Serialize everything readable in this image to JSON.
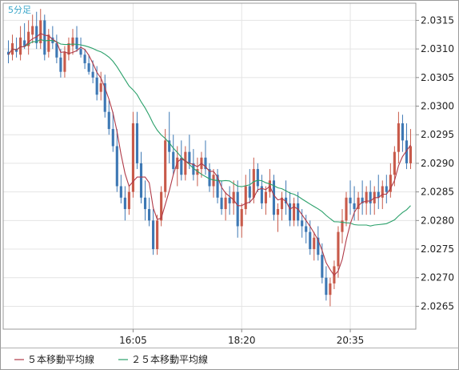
{
  "timeframe_label": "5分足",
  "chart_data": {
    "type": "candlestick",
    "ylim": [
      2.0261,
      2.0318
    ],
    "y_ticks": [
      "2.0315",
      "2.0310",
      "2.0305",
      "2.0300",
      "2.0295",
      "2.0290",
      "2.0285",
      "2.0280",
      "2.0275",
      "2.0270",
      "2.0265"
    ],
    "x_ticks": [
      {
        "label": "16:05",
        "bar": 31
      },
      {
        "label": "18:20",
        "bar": 58
      },
      {
        "label": "20:35",
        "bar": 85
      }
    ],
    "grid": true,
    "legend_position": "bottom-left",
    "colors": {
      "up": "#c85a4a",
      "down": "#3d78b4",
      "ma5": "#b03a48",
      "ma25": "#2aa06a",
      "axis": "#8a8a8a",
      "grid": "#e4e4e4"
    },
    "legend": [
      {
        "label": "５本移動平均線",
        "color": "#b03a48"
      },
      {
        "label": "２５本移動平均線",
        "color": "#2aa06a"
      }
    ],
    "ohlc": [
      [
        2.03095,
        2.03115,
        2.03075,
        2.0309
      ],
      [
        2.0309,
        2.03125,
        2.0308,
        2.0311
      ],
      [
        2.031,
        2.0312,
        2.03085,
        2.03095
      ],
      [
        2.0309,
        2.0314,
        2.0308,
        2.0312
      ],
      [
        2.03115,
        2.03145,
        2.031,
        2.03105
      ],
      [
        2.03105,
        2.0315,
        2.0309,
        2.0313
      ],
      [
        2.03125,
        2.0316,
        2.0311,
        2.0314
      ],
      [
        2.0314,
        2.03165,
        2.031,
        2.0311
      ],
      [
        2.0311,
        2.0317,
        2.031,
        2.0315
      ],
      [
        2.0315,
        2.0316,
        2.0308,
        2.0309
      ],
      [
        2.03095,
        2.03135,
        2.03085,
        2.03125
      ],
      [
        2.0312,
        2.0314,
        2.031,
        2.0311
      ],
      [
        2.0311,
        2.03125,
        2.03075,
        2.03085
      ],
      [
        2.03085,
        2.031,
        2.0305,
        2.0306
      ],
      [
        2.0306,
        2.03105,
        2.0305,
        2.03095
      ],
      [
        2.0309,
        2.0312,
        2.0308,
        2.0311
      ],
      [
        2.03105,
        2.03135,
        2.0309,
        2.0312
      ],
      [
        2.0312,
        2.0314,
        2.03095,
        2.031
      ],
      [
        2.031,
        2.0312,
        2.03085,
        2.0309
      ],
      [
        2.0309,
        2.031,
        2.03065,
        2.03075
      ],
      [
        2.03075,
        2.0309,
        2.03055,
        2.0306
      ],
      [
        2.0306,
        2.0308,
        2.0304,
        2.0305
      ],
      [
        2.0305,
        2.0307,
        2.0301,
        2.0302
      ],
      [
        2.03025,
        2.0306,
        2.0301,
        2.0304
      ],
      [
        2.0304,
        2.03055,
        2.0298,
        2.0299
      ],
      [
        2.0299,
        2.0301,
        2.0295,
        2.0296
      ],
      [
        2.0296,
        2.0299,
        2.0292,
        2.0293
      ],
      [
        2.0293,
        2.0296,
        2.0285,
        2.0286
      ],
      [
        2.0286,
        2.0288,
        2.0283,
        2.0284
      ],
      [
        2.0284,
        2.0286,
        2.028,
        2.0282
      ],
      [
        2.0282,
        2.0286,
        2.0281,
        2.0285
      ],
      [
        2.0285,
        2.0299,
        2.0284,
        2.0297
      ],
      [
        2.0297,
        2.0299,
        2.0289,
        2.029
      ],
      [
        2.029,
        2.0292,
        2.0283,
        2.0284
      ],
      [
        2.0284,
        2.0287,
        2.028,
        2.0282
      ],
      [
        2.0282,
        2.0284,
        2.0279,
        2.028
      ],
      [
        2.028,
        2.0282,
        2.0274,
        2.0275
      ],
      [
        2.0275,
        2.0281,
        2.0274,
        2.028
      ],
      [
        2.028,
        2.0286,
        2.0279,
        2.0285
      ],
      [
        2.0285,
        2.0296,
        2.0284,
        2.0294
      ],
      [
        2.0294,
        2.0299,
        2.029,
        2.0292
      ],
      [
        2.0292,
        2.0295,
        2.0288,
        2.0289
      ],
      [
        2.0289,
        2.0293,
        2.0286,
        2.0291
      ],
      [
        2.0291,
        2.0294,
        2.0287,
        2.0288
      ],
      [
        2.0288,
        2.0293,
        2.0287,
        2.0292
      ],
      [
        2.0292,
        2.0295,
        2.0289,
        2.029
      ],
      [
        2.029,
        2.02925,
        2.0287,
        2.0288
      ],
      [
        2.0288,
        2.0291,
        2.0286,
        2.0289
      ],
      [
        2.0289,
        2.0292,
        2.02875,
        2.0291
      ],
      [
        2.0291,
        2.0294,
        2.0288,
        2.0289
      ],
      [
        2.0289,
        2.029,
        2.0285,
        2.0286
      ],
      [
        2.0286,
        2.0289,
        2.0284,
        2.0288
      ],
      [
        2.0288,
        2.0289,
        2.0283,
        2.0284
      ],
      [
        2.0284,
        2.0287,
        2.0281,
        2.0282
      ],
      [
        2.0282,
        2.0285,
        2.028,
        2.0284
      ],
      [
        2.0284,
        2.0286,
        2.0281,
        2.0283
      ],
      [
        2.0283,
        2.0287,
        2.0281,
        2.0285
      ],
      [
        2.0285,
        2.0287,
        2.0277,
        2.0279
      ],
      [
        2.0279,
        2.0283,
        2.0277,
        2.0282
      ],
      [
        2.0282,
        2.0288,
        2.0281,
        2.0286
      ],
      [
        2.0286,
        2.0289,
        2.0283,
        2.0284
      ],
      [
        2.0284,
        2.0291,
        2.0283,
        2.0289
      ],
      [
        2.0289,
        2.029,
        2.0285,
        2.0286
      ],
      [
        2.0286,
        2.0288,
        2.0282,
        2.0283
      ],
      [
        2.0283,
        2.0286,
        2.0281,
        2.0285
      ],
      [
        2.0285,
        2.0289,
        2.0284,
        2.0287
      ],
      [
        2.0287,
        2.0288,
        2.028,
        2.0281
      ],
      [
        2.0281,
        2.0283,
        2.0278,
        2.0282
      ],
      [
        2.0282,
        2.0285,
        2.028,
        2.0284
      ],
      [
        2.0284,
        2.0287,
        2.0281,
        2.0283
      ],
      [
        2.0283,
        2.0285,
        2.0279,
        2.028
      ],
      [
        2.028,
        2.0284,
        2.0279,
        2.0283
      ],
      [
        2.0283,
        2.0285,
        2.0279,
        2.028
      ],
      [
        2.028,
        2.0282,
        2.0277,
        2.0279
      ],
      [
        2.0279,
        2.0281,
        2.0276,
        2.0278
      ],
      [
        2.0278,
        2.028,
        2.0274,
        2.0275
      ],
      [
        2.0275,
        2.0278,
        2.0273,
        2.0277
      ],
      [
        2.0277,
        2.0279,
        2.0273,
        2.0274
      ],
      [
        2.0274,
        2.0276,
        2.0269,
        2.027
      ],
      [
        2.027,
        2.0272,
        2.0266,
        2.0267
      ],
      [
        2.0267,
        2.027,
        2.0265,
        2.0269
      ],
      [
        2.0269,
        2.0273,
        2.0268,
        2.0272
      ],
      [
        2.0272,
        2.0279,
        2.027,
        2.0278
      ],
      [
        2.0278,
        2.0282,
        2.0276,
        2.028
      ],
      [
        2.028,
        2.0285,
        2.0279,
        2.0284
      ],
      [
        2.0284,
        2.0287,
        2.0281,
        2.0283
      ],
      [
        2.0283,
        2.0286,
        2.028,
        2.0282
      ],
      [
        2.0282,
        2.0285,
        2.028,
        2.0284
      ],
      [
        2.0284,
        2.0287,
        2.0281,
        2.0283
      ],
      [
        2.0283,
        2.0286,
        2.0281,
        2.0285
      ],
      [
        2.0285,
        2.0287,
        2.0281,
        2.0283
      ],
      [
        2.0283,
        2.0286,
        2.0281,
        2.0285
      ],
      [
        2.0285,
        2.0288,
        2.0282,
        2.0284
      ],
      [
        2.0284,
        2.0287,
        2.0282,
        2.0286
      ],
      [
        2.0286,
        2.0288,
        2.0283,
        2.0285
      ],
      [
        2.0285,
        2.029,
        2.0284,
        2.0288
      ],
      [
        2.0288,
        2.0293,
        2.0286,
        2.0292
      ],
      [
        2.0292,
        2.0299,
        2.029,
        2.0297
      ],
      [
        2.0297,
        2.02985,
        2.0292,
        2.0294
      ],
      [
        2.0294,
        2.0297,
        2.0289,
        2.029
      ],
      [
        2.029,
        2.0296,
        2.0289,
        2.0293
      ]
    ]
  }
}
